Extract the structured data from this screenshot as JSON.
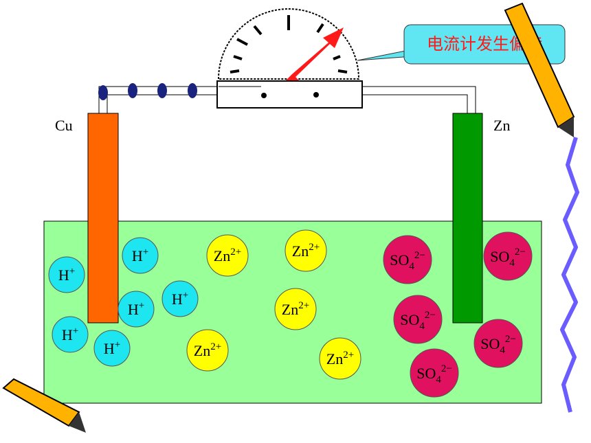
{
  "electrodes": {
    "left": "Cu",
    "right": "Zn"
  },
  "callout": "电流计发生偏转",
  "ions": [
    {
      "symbol": "H",
      "charge": "+"
    },
    {
      "symbol": "H",
      "charge": "+"
    },
    {
      "symbol": "H",
      "charge": "+"
    },
    {
      "symbol": "H",
      "charge": "+"
    },
    {
      "symbol": "H",
      "charge": "+"
    },
    {
      "symbol": "H",
      "charge": "+"
    },
    {
      "symbol": "Zn",
      "charge": "2+"
    },
    {
      "symbol": "Zn",
      "charge": "2+"
    },
    {
      "symbol": "Zn",
      "charge": "2+"
    },
    {
      "symbol": "Zn",
      "charge": "2+"
    },
    {
      "symbol": "Zn",
      "charge": "2+"
    },
    {
      "symbol": "SO",
      "subscript": "4",
      "charge": "2−"
    },
    {
      "symbol": "SO",
      "subscript": "4",
      "charge": "2−"
    },
    {
      "symbol": "SO",
      "subscript": "4",
      "charge": "2−"
    },
    {
      "symbol": "SO",
      "subscript": "4",
      "charge": "2−"
    },
    {
      "symbol": "SO",
      "subscript": "4",
      "charge": "2−"
    }
  ]
}
